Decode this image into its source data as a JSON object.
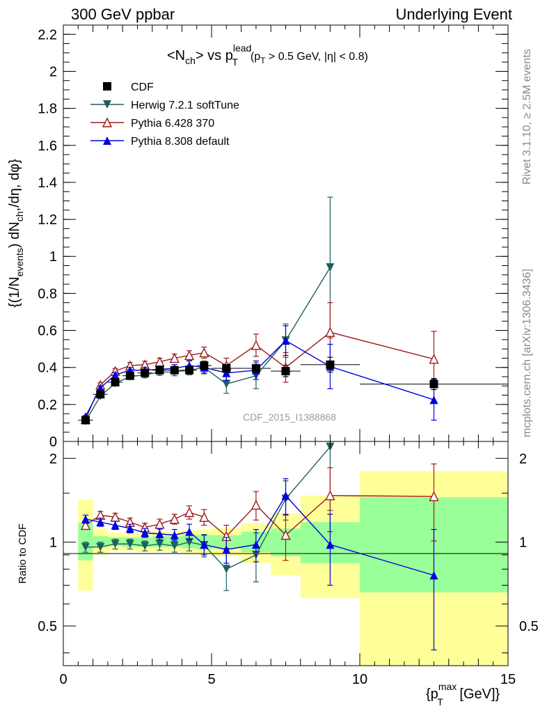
{
  "header": {
    "left": "300 GeV ppbar",
    "right": "Underlying Event"
  },
  "side_text": {
    "rivet": "Rivet 3.1.10, ≥ 2.5M events",
    "mcplots": "mcplots.cern.ch [arXiv:1306.3436]"
  },
  "watermark": "CDF_2015_I1388868",
  "colors": {
    "cdf": "#000000",
    "herwig": "#1f5f5f",
    "pythia6": "#9b1b1b",
    "pythia8": "#0000e0",
    "band_yellow": "#ffff99",
    "band_green": "#99ff99"
  },
  "chart_data": [
    {
      "type": "scatter",
      "title_parts": {
        "nch": "<N",
        "nch_sub": "ch",
        "vs": "> vs p",
        "p_sup": "lead",
        "p_sub": "T",
        "cut1": "(p",
        "cut1_sub": "T",
        "cut2": " > 0.5 GeV, |η| < 0.8)"
      },
      "ylabel": "{(1/N_events) dN_ch/dη, dφ}",
      "ylabel_parts": {
        "a": "{(1/N",
        "a_sub": "events",
        "b": ") dN",
        "b_sub": "ch",
        "c": ",/dη, dφ}"
      },
      "xlim": [
        0,
        15
      ],
      "ylim": [
        0,
        2.25
      ],
      "yticks": [
        0,
        0.2,
        0.4,
        0.6,
        0.8,
        1,
        1.2,
        1.4,
        1.6,
        1.8,
        2,
        2.2
      ],
      "ytick_labels": [
        "0",
        "0.2",
        "0.4",
        "0.6",
        "0.8",
        "1",
        "1.2",
        "1.4",
        "1.6",
        "1.8",
        "2",
        "2.2"
      ],
      "legend": {
        "placement": "top-left",
        "entries": [
          "CDF",
          "Herwig 7.2.1 softTune",
          "Pythia 6.428 370",
          "Pythia 8.308 default"
        ]
      },
      "x_bins": [
        [
          0.5,
          1.0
        ],
        [
          1.0,
          1.5
        ],
        [
          1.5,
          2.0
        ],
        [
          2.0,
          2.5
        ],
        [
          2.5,
          3.0
        ],
        [
          3.0,
          3.5
        ],
        [
          3.5,
          4.0
        ],
        [
          4.0,
          4.5
        ],
        [
          4.5,
          5.0
        ],
        [
          5.0,
          6.0
        ],
        [
          6.0,
          7.0
        ],
        [
          7.0,
          8.0
        ],
        [
          8.0,
          10.0
        ],
        [
          10.0,
          15.0
        ]
      ],
      "series": [
        {
          "name": "CDF",
          "key": "cdf",
          "marker": "square",
          "x": [
            0.75,
            1.25,
            1.75,
            2.25,
            2.75,
            3.25,
            3.75,
            4.25,
            4.75,
            5.5,
            6.5,
            7.5,
            9.0,
            12.5
          ],
          "y": [
            0.115,
            0.255,
            0.32,
            0.355,
            0.37,
            0.385,
            0.385,
            0.385,
            0.41,
            0.395,
            0.395,
            0.38,
            0.415,
            0.31
          ],
          "err": [
            0.005,
            0.008,
            0.01,
            0.012,
            0.012,
            0.014,
            0.015,
            0.016,
            0.018,
            0.02,
            0.02,
            0.03,
            0.04,
            0.03
          ]
        },
        {
          "name": "Herwig 7.2.1 softTune",
          "key": "herwig",
          "marker": "triangle-down",
          "x": [
            0.75,
            1.25,
            1.75,
            2.25,
            2.75,
            3.25,
            3.75,
            4.25,
            4.75,
            5.5,
            6.5,
            7.5,
            9.0
          ],
          "y": [
            0.11,
            0.245,
            0.315,
            0.35,
            0.36,
            0.375,
            0.375,
            0.385,
            0.4,
            0.31,
            0.355,
            0.545,
            0.94
          ],
          "err": [
            0.005,
            0.01,
            0.012,
            0.014,
            0.016,
            0.018,
            0.02,
            0.025,
            0.035,
            0.05,
            0.07,
            0.09,
            0.38
          ]
        },
        {
          "name": "Pythia 6.428 370",
          "key": "pythia6",
          "marker": "triangle-up-open",
          "x": [
            0.75,
            1.25,
            1.75,
            2.25,
            2.75,
            3.25,
            3.75,
            4.25,
            4.75,
            5.5,
            6.5,
            7.5,
            9.0,
            12.5
          ],
          "y": [
            0.12,
            0.305,
            0.38,
            0.41,
            0.415,
            0.43,
            0.45,
            0.465,
            0.48,
            0.41,
            0.52,
            0.4,
            0.59,
            0.445
          ],
          "err": [
            0.005,
            0.012,
            0.014,
            0.016,
            0.018,
            0.02,
            0.022,
            0.025,
            0.03,
            0.04,
            0.06,
            0.08,
            0.16,
            0.15
          ]
        },
        {
          "name": "Pythia 8.308 default",
          "key": "pythia8",
          "marker": "triangle-up",
          "x": [
            0.75,
            1.25,
            1.75,
            2.25,
            2.75,
            3.25,
            3.75,
            4.25,
            4.75,
            5.5,
            6.5,
            7.5,
            9.0,
            12.5
          ],
          "y": [
            0.135,
            0.29,
            0.36,
            0.385,
            0.385,
            0.39,
            0.395,
            0.41,
            0.4,
            0.37,
            0.385,
            0.545,
            0.405,
            0.225
          ],
          "err": [
            0.005,
            0.01,
            0.012,
            0.014,
            0.016,
            0.018,
            0.02,
            0.025,
            0.03,
            0.04,
            0.05,
            0.08,
            0.12,
            0.11
          ]
        }
      ]
    },
    {
      "type": "scatter",
      "ylabel": "Ratio to CDF",
      "xlabel_parts": {
        "a": "{p",
        "a_sup": "max",
        "a_sub": "T",
        "b": " [GeV]}"
      },
      "xlim": [
        0,
        15
      ],
      "ylim": [
        0.36,
        2.3
      ],
      "ylog": true,
      "yticks": [
        0.5,
        1,
        2
      ],
      "ytick_labels": [
        "0.5",
        "1",
        "2"
      ],
      "xticks": [
        0,
        5,
        10,
        15
      ],
      "xtick_labels": [
        "0",
        "5",
        "10",
        "15"
      ],
      "reference_line": 1,
      "band_green": [
        {
          "x0": 0.5,
          "x1": 1.0,
          "lo": 0.86,
          "hi": 1.17
        },
        {
          "x0": 1.0,
          "x1": 1.5,
          "lo": 0.96,
          "hi": 1.05
        },
        {
          "x0": 1.5,
          "x1": 2.0,
          "lo": 0.97,
          "hi": 1.04
        },
        {
          "x0": 2.0,
          "x1": 2.5,
          "lo": 0.96,
          "hi": 1.04
        },
        {
          "x0": 2.5,
          "x1": 3.0,
          "lo": 0.96,
          "hi": 1.04
        },
        {
          "x0": 3.0,
          "x1": 3.5,
          "lo": 0.96,
          "hi": 1.05
        },
        {
          "x0": 3.5,
          "x1": 4.0,
          "lo": 0.96,
          "hi": 1.05
        },
        {
          "x0": 4.0,
          "x1": 4.5,
          "lo": 0.95,
          "hi": 1.06
        },
        {
          "x0": 4.5,
          "x1": 5.0,
          "lo": 0.94,
          "hi": 1.06
        },
        {
          "x0": 5.0,
          "x1": 6.0,
          "lo": 0.95,
          "hi": 1.06
        },
        {
          "x0": 6.0,
          "x1": 7.0,
          "lo": 0.92,
          "hi": 1.09
        },
        {
          "x0": 7.0,
          "x1": 8.0,
          "lo": 0.89,
          "hi": 1.12
        },
        {
          "x0": 8.0,
          "x1": 10.0,
          "lo": 0.84,
          "hi": 1.18
        },
        {
          "x0": 10.0,
          "x1": 15.0,
          "lo": 0.66,
          "hi": 1.45
        }
      ],
      "band_yellow": [
        {
          "x0": 0.5,
          "x1": 1.0,
          "lo": 0.67,
          "hi": 1.42
        },
        {
          "x0": 1.0,
          "x1": 1.5,
          "lo": 0.9,
          "hi": 1.12
        },
        {
          "x0": 1.5,
          "x1": 2.0,
          "lo": 0.93,
          "hi": 1.08
        },
        {
          "x0": 2.0,
          "x1": 2.5,
          "lo": 0.93,
          "hi": 1.08
        },
        {
          "x0": 2.5,
          "x1": 3.0,
          "lo": 0.92,
          "hi": 1.08
        },
        {
          "x0": 3.0,
          "x1": 3.5,
          "lo": 0.92,
          "hi": 1.09
        },
        {
          "x0": 3.5,
          "x1": 4.0,
          "lo": 0.92,
          "hi": 1.09
        },
        {
          "x0": 4.0,
          "x1": 4.5,
          "lo": 0.91,
          "hi": 1.1
        },
        {
          "x0": 4.5,
          "x1": 5.0,
          "lo": 0.9,
          "hi": 1.11
        },
        {
          "x0": 5.0,
          "x1": 6.0,
          "lo": 0.89,
          "hi": 1.12
        },
        {
          "x0": 6.0,
          "x1": 7.0,
          "lo": 0.84,
          "hi": 1.17
        },
        {
          "x0": 7.0,
          "x1": 8.0,
          "lo": 0.76,
          "hi": 1.27
        },
        {
          "x0": 8.0,
          "x1": 10.0,
          "lo": 0.63,
          "hi": 1.47
        },
        {
          "x0": 10.0,
          "x1": 15.0,
          "lo": 0.33,
          "hi": 1.8
        }
      ],
      "series": [
        {
          "name": "Herwig 7.2.1 softTune",
          "key": "herwig",
          "marker": "triangle-down",
          "x": [
            0.75,
            1.25,
            1.75,
            2.25,
            2.75,
            3.25,
            3.75,
            4.25,
            4.75,
            5.5,
            6.5,
            7.5,
            9.0
          ],
          "y": [
            0.96,
            0.96,
            0.985,
            0.985,
            0.97,
            0.985,
            0.97,
            1.0,
            0.975,
            0.8,
            0.9,
            1.43,
            2.2
          ],
          "err": [
            0.04,
            0.04,
            0.04,
            0.04,
            0.04,
            0.05,
            0.05,
            0.07,
            0.09,
            0.13,
            0.18,
            0.23,
            0.9
          ]
        },
        {
          "name": "Pythia 6.428 370",
          "key": "pythia6",
          "marker": "triangle-up-open",
          "x": [
            0.75,
            1.25,
            1.75,
            2.25,
            2.75,
            3.25,
            3.75,
            4.25,
            4.75,
            5.5,
            6.5,
            7.5,
            9.0,
            12.5
          ],
          "y": [
            1.15,
            1.25,
            1.23,
            1.18,
            1.13,
            1.16,
            1.21,
            1.28,
            1.23,
            1.05,
            1.36,
            1.06,
            1.47,
            1.46
          ],
          "err": [
            0.04,
            0.04,
            0.04,
            0.04,
            0.04,
            0.05,
            0.05,
            0.07,
            0.08,
            0.1,
            0.16,
            0.2,
            0.38,
            0.45
          ]
        },
        {
          "name": "Pythia 8.308 default",
          "key": "pythia8",
          "marker": "triangle-up",
          "x": [
            0.75,
            1.25,
            1.75,
            2.25,
            2.75,
            3.25,
            3.75,
            4.25,
            4.75,
            5.5,
            6.5,
            7.5,
            9.0,
            12.5
          ],
          "y": [
            1.21,
            1.18,
            1.15,
            1.12,
            1.08,
            1.07,
            1.06,
            1.09,
            0.98,
            0.94,
            0.98,
            1.47,
            0.98,
            0.76
          ],
          "err": [
            0.04,
            0.04,
            0.04,
            0.04,
            0.04,
            0.05,
            0.05,
            0.07,
            0.08,
            0.1,
            0.13,
            0.22,
            0.28,
            0.35
          ]
        }
      ]
    }
  ]
}
